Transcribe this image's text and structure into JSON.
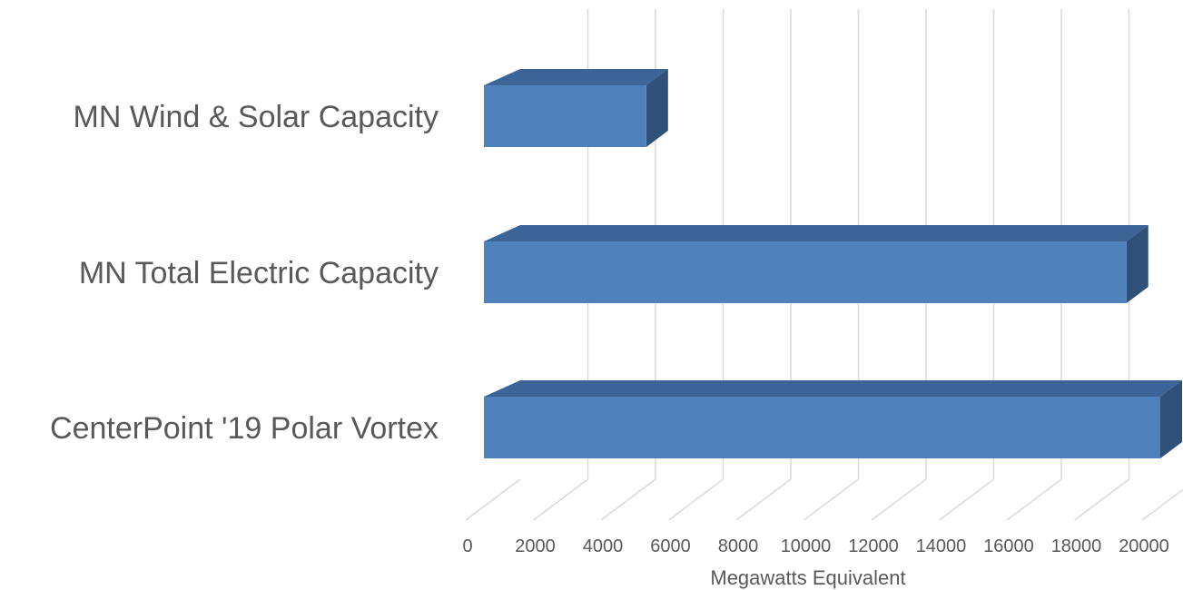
{
  "chart_data": {
    "type": "bar",
    "orientation": "horizontal",
    "style": "3d",
    "categories": [
      "MN Wind & Solar Capacity",
      "MN Total Electric Capacity",
      "CenterPoint '19 Polar Vortex"
    ],
    "values": [
      4800,
      19000,
      20000
    ],
    "title": "",
    "xlabel": "Megawatts Equivalent",
    "ylabel": "",
    "xlim": [
      0,
      20000
    ],
    "xticks": [
      0,
      2000,
      4000,
      6000,
      8000,
      10000,
      12000,
      14000,
      16000,
      18000,
      20000
    ],
    "grid": true,
    "legend": "none",
    "colors": {
      "bar_front": "#4F81BD",
      "bar_top": "#3C6496",
      "bar_side": "#2F5079",
      "gridline": "#D9D9D9",
      "text": "#595959"
    }
  }
}
